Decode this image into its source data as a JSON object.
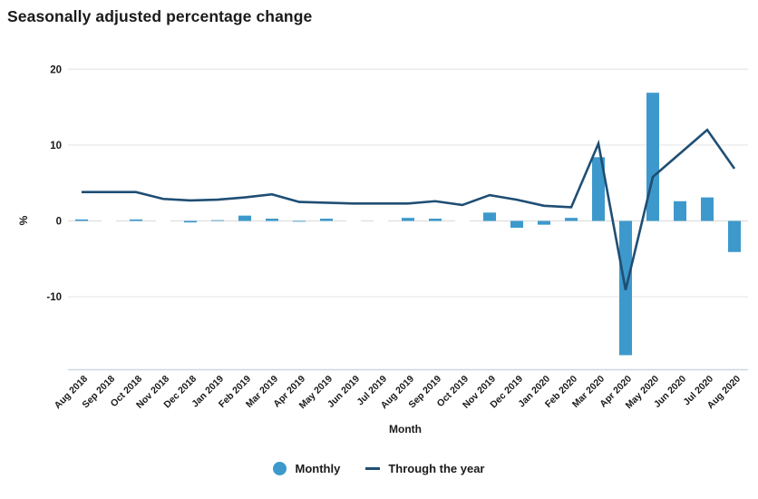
{
  "title": "Seasonally adjusted percentage change",
  "colors": {
    "bar": "#3d99cc",
    "line": "#1f4e74",
    "grid": "#eaeaea",
    "zero_line": "#dedede",
    "bottom_axis": "#ccd8e4",
    "text": "#1a1a1a"
  },
  "legend": {
    "items": [
      {
        "label": "Monthly",
        "swatch": "circle-swatch-icon"
      },
      {
        "label": "Through the year",
        "swatch": "line-swatch-icon"
      }
    ]
  },
  "chart_data": {
    "type": "bar+line",
    "title": "Seasonally adjusted percentage change",
    "xlabel": "Month",
    "ylabel": "%",
    "ylim": [
      -20,
      20
    ],
    "yticks": [
      20,
      10,
      0,
      -10
    ],
    "grid": "horizontal",
    "legend_position": "bottom",
    "categories": [
      "Aug 2018",
      "Sep 2018",
      "Oct 2018",
      "Nov 2018",
      "Dec 2018",
      "Jan 2019",
      "Feb 2019",
      "Mar 2019",
      "Apr 2019",
      "May 2019",
      "Jun 2019",
      "Jul 2019",
      "Aug 2019",
      "Sep 2019",
      "Oct 2019",
      "Nov 2019",
      "Dec 2019",
      "Jan 2020",
      "Feb 2020",
      "Mar 2020",
      "Apr 2020",
      "May 2020",
      "Jun 2020",
      "Jul 2020",
      "Aug 2020"
    ],
    "series": [
      {
        "name": "Monthly",
        "type": "bar",
        "values": [
          0.2,
          0.0,
          0.2,
          0.0,
          -0.2,
          0.1,
          0.7,
          0.3,
          -0.1,
          0.3,
          0.0,
          0.0,
          0.4,
          0.3,
          0.0,
          1.1,
          -0.9,
          -0.5,
          0.4,
          8.4,
          -17.7,
          16.9,
          2.6,
          3.1,
          -4.1
        ]
      },
      {
        "name": "Through the year",
        "type": "line",
        "values": [
          3.8,
          3.8,
          3.8,
          2.9,
          2.7,
          2.8,
          3.1,
          3.5,
          2.5,
          2.4,
          2.3,
          2.3,
          2.3,
          2.6,
          2.1,
          3.4,
          2.8,
          2.0,
          1.8,
          10.2,
          -9.1,
          5.8,
          8.9,
          12.0,
          6.9
        ]
      }
    ]
  }
}
